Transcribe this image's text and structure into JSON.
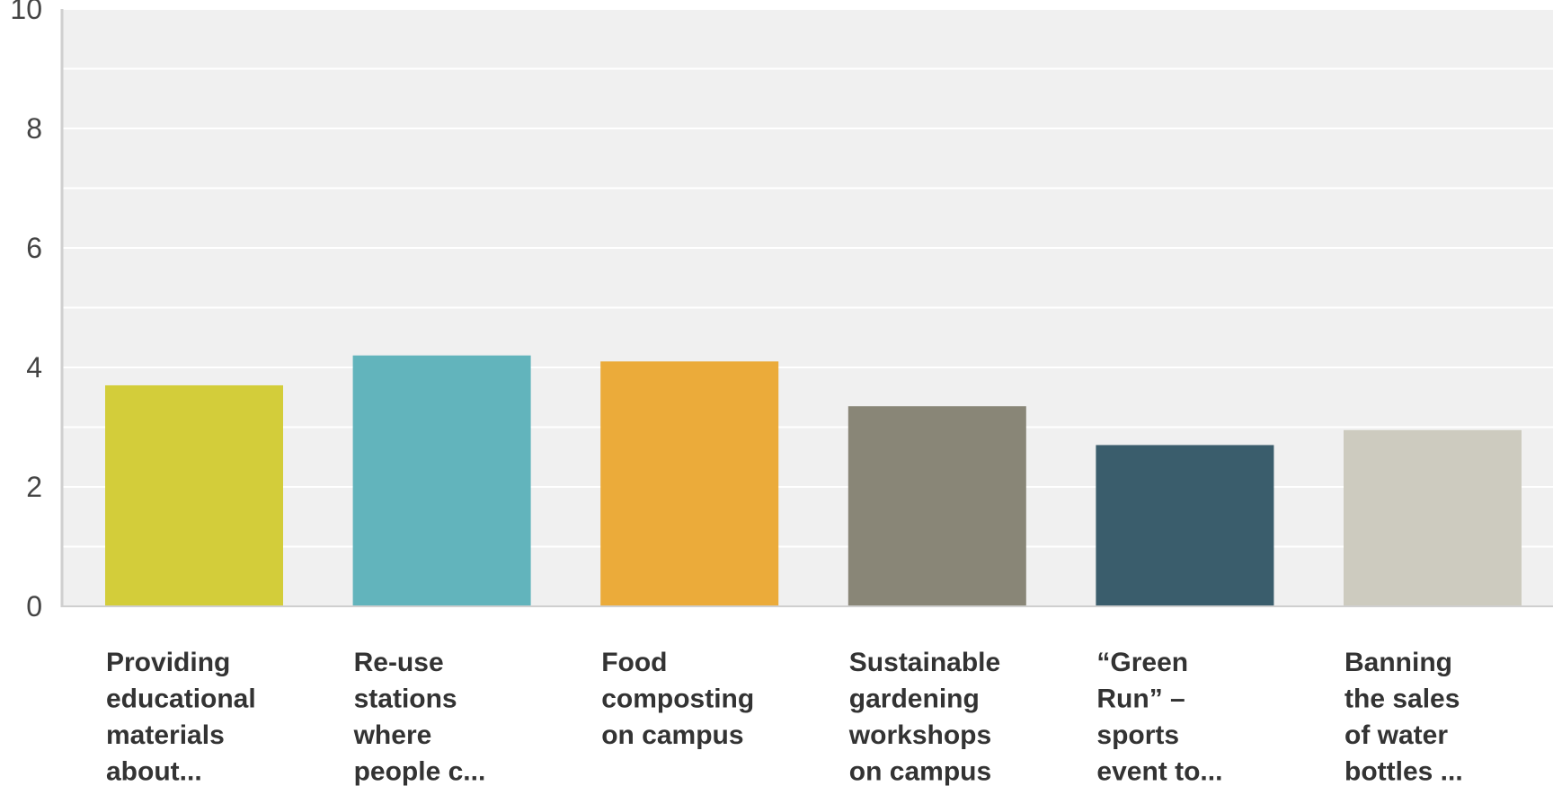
{
  "chart_data": {
    "type": "bar",
    "title": "",
    "xlabel": "",
    "ylabel": "",
    "ylim": [
      0,
      10
    ],
    "yticks": [
      0,
      2,
      4,
      6,
      8,
      10
    ],
    "grid": true,
    "legend": "none",
    "categories": [
      [
        "Providing",
        "educational",
        "materials",
        "about..."
      ],
      [
        "Re-use",
        "stations",
        "where",
        "people c..."
      ],
      [
        "Food",
        "composting",
        "on campus"
      ],
      [
        "Sustainable",
        "gardening",
        "workshops",
        "on campus"
      ],
      [
        "“Green",
        "Run” –",
        "sports",
        "event to..."
      ],
      [
        "Banning",
        "the sales",
        "of water",
        "bottles ..."
      ]
    ],
    "values": [
      3.7,
      4.2,
      4.1,
      3.35,
      2.7,
      2.95
    ],
    "colors": [
      "#d3cd3a",
      "#62b4bc",
      "#ebab3a",
      "#898677",
      "#3a5d6c",
      "#cdcbbf"
    ]
  }
}
